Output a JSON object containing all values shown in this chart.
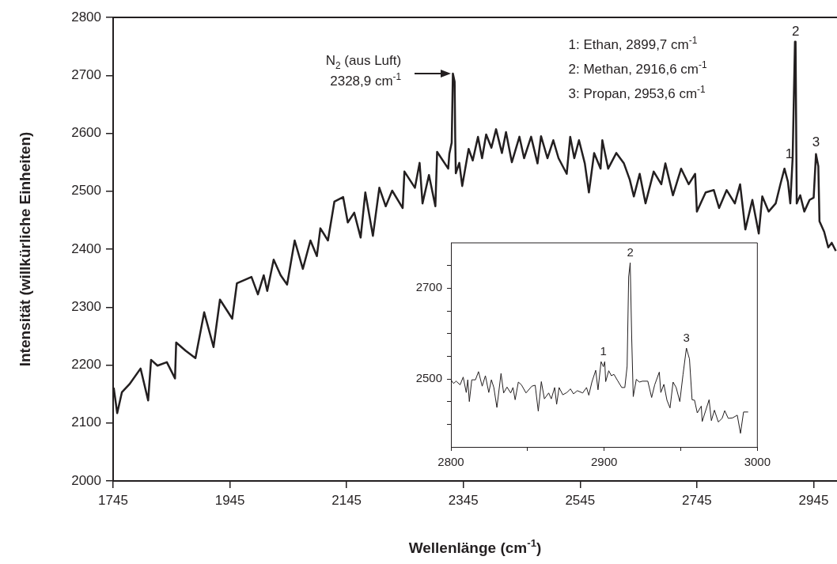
{
  "chart_data": [
    {
      "type": "line",
      "xlabel": "Wellenlänge (cm$^{-1}$)",
      "ylabel": "Intensität (willkürliche Einheiten)",
      "color": "#231f20",
      "x": [
        1746,
        1752,
        1760,
        1773,
        1792,
        1805,
        1810,
        1821,
        1837,
        1851,
        1853,
        1869,
        1886,
        1901,
        1917,
        1928,
        1944,
        1949,
        1957,
        1982,
        1993,
        2003,
        2009,
        2020,
        2032,
        2043,
        2056,
        2070,
        2083,
        2094,
        2100,
        2113,
        2124,
        2139,
        2147,
        2158,
        2169,
        2177,
        2190,
        2201,
        2212,
        2223,
        2241,
        2244,
        2262,
        2270,
        2275,
        2286,
        2297,
        2300,
        2319,
        2321,
        2325,
        2327,
        2330,
        2331,
        2332,
        2338,
        2343,
        2354,
        2361,
        2370,
        2377,
        2384,
        2393,
        2401,
        2411,
        2418,
        2428,
        2441,
        2449,
        2461,
        2472,
        2478,
        2489,
        2499,
        2508,
        2522,
        2528,
        2535,
        2543,
        2553,
        2560,
        2569,
        2580,
        2583,
        2593,
        2607,
        2620,
        2630,
        2637,
        2647,
        2657,
        2671,
        2684,
        2691,
        2704,
        2718,
        2731,
        2742,
        2745,
        2760,
        2774,
        2783,
        2796,
        2810,
        2819,
        2828,
        2840,
        2851,
        2857,
        2868,
        2880,
        2888,
        2895,
        2901,
        2905,
        2909,
        2913,
        2914,
        2916,
        2922,
        2929,
        2938,
        2945,
        2949,
        2953,
        2955,
        2963,
        2970,
        2976,
        2983
      ],
      "values": [
        2161,
        2117,
        2153,
        2167,
        2194,
        2139,
        2209,
        2199,
        2205,
        2177,
        2239,
        2225,
        2212,
        2291,
        2231,
        2313,
        2288,
        2280,
        2341,
        2352,
        2322,
        2355,
        2328,
        2382,
        2355,
        2339,
        2415,
        2366,
        2415,
        2388,
        2436,
        2415,
        2482,
        2490,
        2446,
        2463,
        2420,
        2498,
        2423,
        2506,
        2474,
        2501,
        2471,
        2534,
        2506,
        2549,
        2479,
        2528,
        2474,
        2568,
        2539,
        2565,
        2584,
        2703,
        2689,
        2592,
        2531,
        2549,
        2509,
        2573,
        2553,
        2594,
        2557,
        2598,
        2575,
        2607,
        2566,
        2602,
        2550,
        2594,
        2557,
        2594,
        2548,
        2595,
        2557,
        2588,
        2557,
        2530,
        2594,
        2557,
        2588,
        2548,
        2498,
        2566,
        2539,
        2588,
        2539,
        2566,
        2548,
        2520,
        2491,
        2530,
        2479,
        2534,
        2512,
        2548,
        2493,
        2539,
        2512,
        2530,
        2465,
        2498,
        2502,
        2471,
        2502,
        2479,
        2512,
        2434,
        2485,
        2427,
        2491,
        2465,
        2479,
        2512,
        2539,
        2516,
        2479,
        2557,
        2758,
        2758,
        2479,
        2493,
        2465,
        2485,
        2489,
        2564,
        2543,
        2448,
        2430,
        2403,
        2411,
        2397
      ],
      "xlim": [
        1745,
        2985
      ],
      "xticks": [
        1745,
        1945,
        2145,
        2345,
        2545,
        2745,
        2945
      ],
      "ylim": [
        2000,
        2800
      ],
      "yticks": [
        2000,
        2100,
        2200,
        2300,
        2400,
        2500,
        2600,
        2700,
        2800
      ],
      "annotations": [
        "N$_{2}$ (aus Luft)\n2328,9 cm$^{-1}$",
        "1: Ethan, 2899,7 cm$^{-1}$",
        "2: Methan, 2916,6 cm$^{-1}$",
        "3: Propan, 2953,6 cm$^{-1}$",
        {
          "text": "1",
          "x": 2903,
          "y": 2546
        },
        {
          "text": "2",
          "x": 2914,
          "y": 2758
        },
        {
          "text": "3",
          "x": 2949,
          "y": 2566
        }
      ]
    },
    {
      "type": "line",
      "color": "#231f20",
      "x": [
        2800,
        2801.7,
        2803.4,
        2806,
        2808,
        2810,
        2811,
        2812,
        2813.6,
        2816,
        2818,
        2820.4,
        2822.5,
        2824.7,
        2826.4,
        2828,
        2830,
        2832.7,
        2834.4,
        2836.6,
        2839,
        2840.5,
        2841.9,
        2844,
        2846,
        2849,
        2852.8,
        2855,
        2857,
        2859,
        2861,
        2863.8,
        2865.5,
        2867.7,
        2869,
        2870.6,
        2873,
        2875.7,
        2878,
        2880,
        2882.5,
        2886,
        2888.5,
        2890,
        2892,
        2894.5,
        2896,
        2898,
        2899.5,
        2900.4,
        2901,
        2903,
        2904.7,
        2906.4,
        2909,
        2911.5,
        2913.5,
        2915,
        2916,
        2917,
        2918,
        2919,
        2921,
        2923,
        2925,
        2928.5,
        2931,
        2933,
        2936,
        2937,
        2939,
        2941,
        2943,
        2945,
        2947,
        2949.4,
        2951.5,
        2953.7,
        2955.7,
        2957.4,
        2959,
        2960.8,
        2963.4,
        2964,
        2968.5,
        2970,
        2972,
        2974.5,
        2977,
        2978.7,
        2981,
        2983.8,
        2986.9,
        2989,
        2991,
        2994
      ],
      "values": [
        2498,
        2490,
        2495,
        2487,
        2504,
        2470,
        2498,
        2450,
        2498,
        2498,
        2516,
        2484,
        2507,
        2470,
        2498,
        2481,
        2437,
        2512,
        2469,
        2482,
        2469,
        2481,
        2454,
        2493,
        2487,
        2469,
        2484,
        2486,
        2429,
        2494,
        2456,
        2469,
        2456,
        2481,
        2444,
        2481,
        2465,
        2470,
        2478,
        2467,
        2474,
        2469,
        2481,
        2464,
        2493,
        2519,
        2476,
        2538,
        2527,
        2538,
        2494,
        2518,
        2507,
        2510,
        2495,
        2481,
        2481,
        2528,
        2725,
        2756,
        2589,
        2461,
        2499,
        2493,
        2495,
        2495,
        2459,
        2487,
        2515,
        2470,
        2488,
        2453,
        2436,
        2493,
        2481,
        2450,
        2510,
        2568,
        2544,
        2454,
        2453,
        2425,
        2440,
        2406,
        2454,
        2408,
        2431,
        2405,
        2413,
        2430,
        2413,
        2414,
        2420,
        2380,
        2427,
        2427
      ],
      "xlim": [
        2800,
        3000
      ],
      "xticks": [
        2800,
        {
          "value": 2850,
          "label": null
        },
        2900,
        {
          "value": 2950,
          "label": null
        },
        3000
      ],
      "ylim": [
        2350,
        2800
      ],
      "yticks": [
        {
          "value": 2400,
          "label": null
        },
        {
          "value": 2450,
          "label": null
        },
        2500,
        {
          "value": 2550,
          "label": null
        },
        {
          "value": 2600,
          "label": null
        },
        {
          "value": 2650,
          "label": null
        },
        2700,
        {
          "value": 2750,
          "label": null
        }
      ],
      "annotations": [
        {
          "text": "1",
          "x": 2899.5,
          "y": 2538
        },
        {
          "text": "2",
          "x": 2917,
          "y": 2756
        },
        {
          "text": "3",
          "x": 2953.7,
          "y": 2568
        }
      ]
    }
  ]
}
